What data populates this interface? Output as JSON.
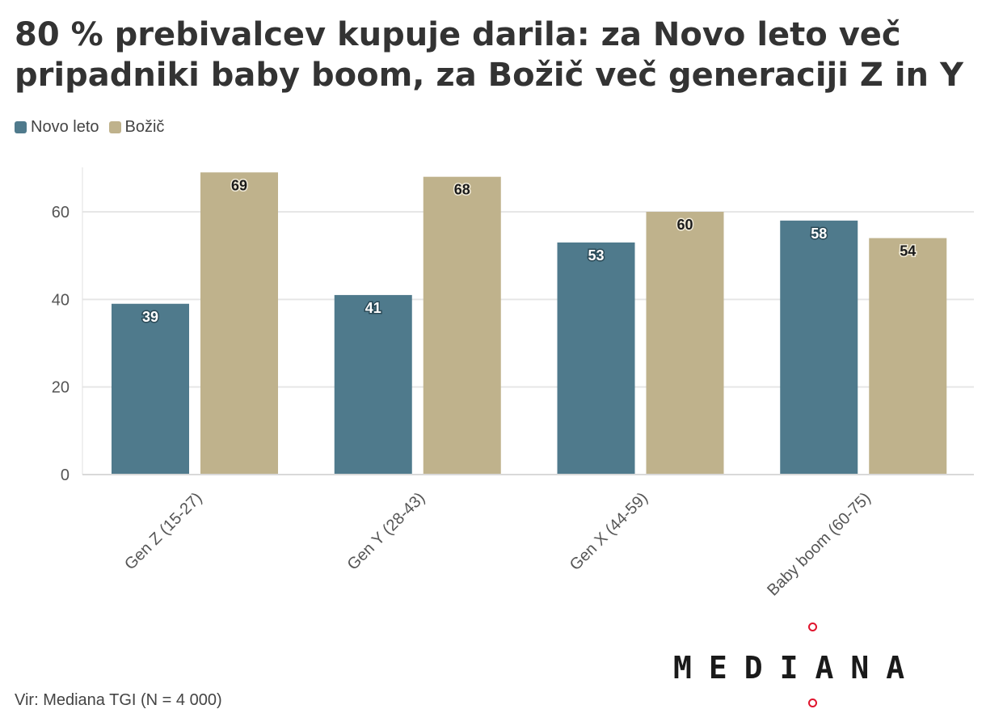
{
  "title": "80 % prebivalcev kupuje darila: za Novo leto več pripadniki baby boom, za Božič več generaciji Z in Y",
  "source": "Vir: Mediana TGI (N = 4 000)",
  "logo": {
    "text": "MEDIANA",
    "accent_color": "#e0142d"
  },
  "chart_data": {
    "type": "bar",
    "categories": [
      "Gen Z (15-27)",
      "Gen Y (28-43)",
      "Gen X (44-59)",
      "Baby boom (60-75)"
    ],
    "series": [
      {
        "name": "Novo leto",
        "color": "#4f7a8c",
        "values": [
          39,
          41,
          53,
          58
        ]
      },
      {
        "name": "Božič",
        "color": "#bfb28c",
        "values": [
          69,
          68,
          60,
          54
        ]
      }
    ],
    "yticks": [
      0,
      20,
      40,
      60
    ],
    "ylim": [
      0,
      69
    ],
    "grid": true,
    "legend_position": "top-left"
  }
}
